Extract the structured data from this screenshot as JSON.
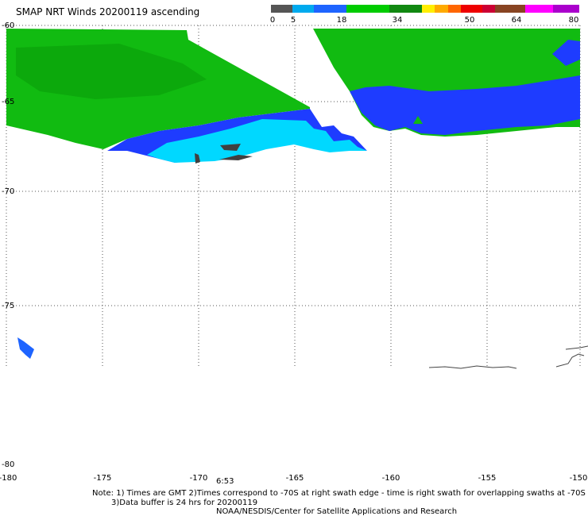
{
  "title": "SMAP NRT Winds 20200119 ascending",
  "colorbar": {
    "segments": [
      {
        "color": "#555555",
        "weight": 1
      },
      {
        "color": "#00aaee",
        "weight": 1
      },
      {
        "color": "#1e64ff",
        "weight": 1.5
      },
      {
        "color": "#00cc00",
        "weight": 2
      },
      {
        "color": "#118811",
        "weight": 1.5
      },
      {
        "color": "#ffee00",
        "weight": 0.6
      },
      {
        "color": "#ffaa00",
        "weight": 0.6
      },
      {
        "color": "#ff6600",
        "weight": 0.6
      },
      {
        "color": "#ee0000",
        "weight": 1
      },
      {
        "color": "#cc0033",
        "weight": 0.6
      },
      {
        "color": "#884422",
        "weight": 1.4
      },
      {
        "color": "#ff00ff",
        "weight": 1.3
      },
      {
        "color": "#aa00cc",
        "weight": 1.2
      }
    ],
    "labels": [
      "0",
      "5",
      "18",
      "34",
      "50",
      "64",
      "80"
    ]
  },
  "map": {
    "lat_labels": [
      "-60",
      "-65",
      "-70",
      "-75",
      "-80"
    ],
    "lon_labels": [
      "-180",
      "-175",
      "-170",
      "-165",
      "-160",
      "-155",
      "-150"
    ],
    "time_label": "6:53"
  },
  "notes": {
    "line1": "Note: 1) Times are GMT 2)Times correspond to -70S at right swath edge - time is right swath for overlapping swaths at -70S",
    "line2": "3)Data buffer is 24 hrs for 20200119",
    "line3": "NOAA/NESDIS/Center for Satellite Applications and Research"
  },
  "colors": {
    "green": "#11bb11",
    "dark_green": "#0a9a0a",
    "blue": "#1e3cff",
    "cyan": "#00d8ff",
    "land_gray": "#404040"
  }
}
